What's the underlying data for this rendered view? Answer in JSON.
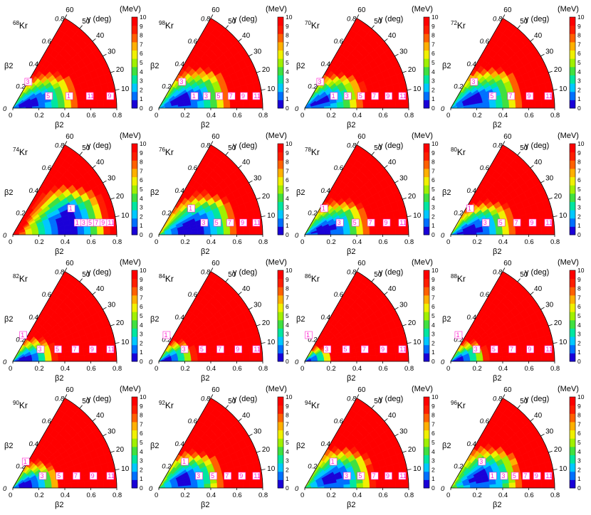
{
  "chart_data": {
    "type": "contour",
    "x_label": "β2",
    "radial_label": "β2",
    "angle_label": "γ (deg)",
    "colorbar_label": "(MeV)",
    "x_ticks": [
      "0",
      "0.2",
      "0.4",
      "0.6",
      "0.8"
    ],
    "radial_ticks": [
      "0",
      "0.2",
      "0.4",
      "0.6",
      "0.8"
    ],
    "angle_ticks": [
      "10",
      "20",
      "30",
      "40",
      "50",
      "60"
    ],
    "colorbar_ticks": [
      "0",
      "1",
      "2",
      "3",
      "4",
      "5",
      "6",
      "7",
      "8",
      "9",
      "10"
    ],
    "colorbar_range": [
      0,
      10
    ],
    "beta_range": [
      0,
      0.8
    ],
    "gamma_range": [
      0,
      60
    ],
    "colors": [
      "#1a00d8",
      "#0070ff",
      "#00c8ff",
      "#00e6a0",
      "#40e040",
      "#a0f000",
      "#f0f000",
      "#ffb000",
      "#ff6000",
      "#ff1e00",
      "#ff0000"
    ],
    "panels": [
      {
        "mass": "68",
        "element": "Kr",
        "contour_labels": [
          "3",
          "5",
          "1",
          "11",
          "9"
        ],
        "minimum_beta": 0.12,
        "minimum_gamma": 18,
        "steepness": 1.0
      },
      {
        "mass": "98",
        "element": "Kr",
        "contour_labels": [
          "3",
          "1",
          "3",
          "5",
          "7",
          "9",
          "11"
        ],
        "minimum_beta": 0.18,
        "minimum_gamma": 22,
        "steepness": 1.0
      },
      {
        "mass": "70",
        "element": "Kr",
        "contour_labels": [
          "3",
          "1",
          "3",
          "5",
          "7",
          "9",
          "11"
        ],
        "minimum_beta": 0.12,
        "minimum_gamma": 30,
        "steepness": 1.1
      },
      {
        "mass": "72",
        "element": "Kr",
        "contour_labels": [
          "3",
          "5",
          "7",
          "9",
          "11"
        ],
        "minimum_beta": 0.18,
        "minimum_gamma": 25,
        "steepness": 1.0
      },
      {
        "mass": "74",
        "element": "Kr",
        "contour_labels": [
          "1",
          "1",
          "3",
          "5",
          "7",
          "9",
          "11"
        ],
        "minimum_beta": 0.45,
        "minimum_gamma": 8,
        "steepness": 1.0
      },
      {
        "mass": "76",
        "element": "Kr",
        "contour_labels": [
          "1",
          "3",
          "5",
          "7",
          "9",
          "11"
        ],
        "minimum_beta": 0.25,
        "minimum_gamma": 10,
        "steepness": 1.0
      },
      {
        "mass": "78",
        "element": "Kr",
        "contour_labels": [
          "1",
          "3",
          "5",
          "7",
          "9",
          "11"
        ],
        "minimum_beta": 0.15,
        "minimum_gamma": 15,
        "steepness": 1.1
      },
      {
        "mass": "80",
        "element": "Kr",
        "contour_labels": [
          "1",
          "3",
          "5",
          "7",
          "9",
          "11"
        ],
        "minimum_beta": 0.15,
        "minimum_gamma": 10,
        "steepness": 1.1
      },
      {
        "mass": "82",
        "element": "Kr",
        "contour_labels": [
          "1",
          "3",
          "5",
          "7",
          "9",
          "11"
        ],
        "minimum_beta": 0.08,
        "minimum_gamma": 10,
        "steepness": 1.6
      },
      {
        "mass": "84",
        "element": "Kr",
        "contour_labels": [
          "1",
          "3",
          "5",
          "7",
          "9",
          "11"
        ],
        "minimum_beta": 0.06,
        "minimum_gamma": 10,
        "steepness": 1.8
      },
      {
        "mass": "86",
        "element": "Kr",
        "contour_labels": [
          "1",
          "3",
          "5",
          "7",
          "9",
          "11"
        ],
        "minimum_beta": 0.03,
        "minimum_gamma": 10,
        "steepness": 2.2
      },
      {
        "mass": "88",
        "element": "Kr",
        "contour_labels": [
          "1",
          "3",
          "5",
          "7",
          "9",
          "11"
        ],
        "minimum_beta": 0.06,
        "minimum_gamma": 10,
        "steepness": 1.8
      },
      {
        "mass": "90",
        "element": "Kr",
        "contour_labels": [
          "1",
          "3",
          "5",
          "7",
          "9",
          "11"
        ],
        "minimum_beta": 0.1,
        "minimum_gamma": 15,
        "steepness": 1.5
      },
      {
        "mass": "92",
        "element": "Kr",
        "contour_labels": [
          "1",
          "3",
          "5",
          "7",
          "9",
          "11"
        ],
        "minimum_beta": 0.2,
        "minimum_gamma": 20,
        "steepness": 1.3
      },
      {
        "mass": "94",
        "element": "Kr",
        "contour_labels": [
          "1",
          "3",
          "5",
          "7",
          "9",
          "11"
        ],
        "minimum_beta": 0.22,
        "minimum_gamma": 25,
        "steepness": 1.2
      },
      {
        "mass": "96",
        "element": "Kr",
        "contour_labels": [
          "3",
          "1",
          "3",
          "5",
          "7",
          "9",
          "11"
        ],
        "minimum_beta": 0.24,
        "minimum_gamma": 25,
        "steepness": 1.2
      }
    ]
  }
}
